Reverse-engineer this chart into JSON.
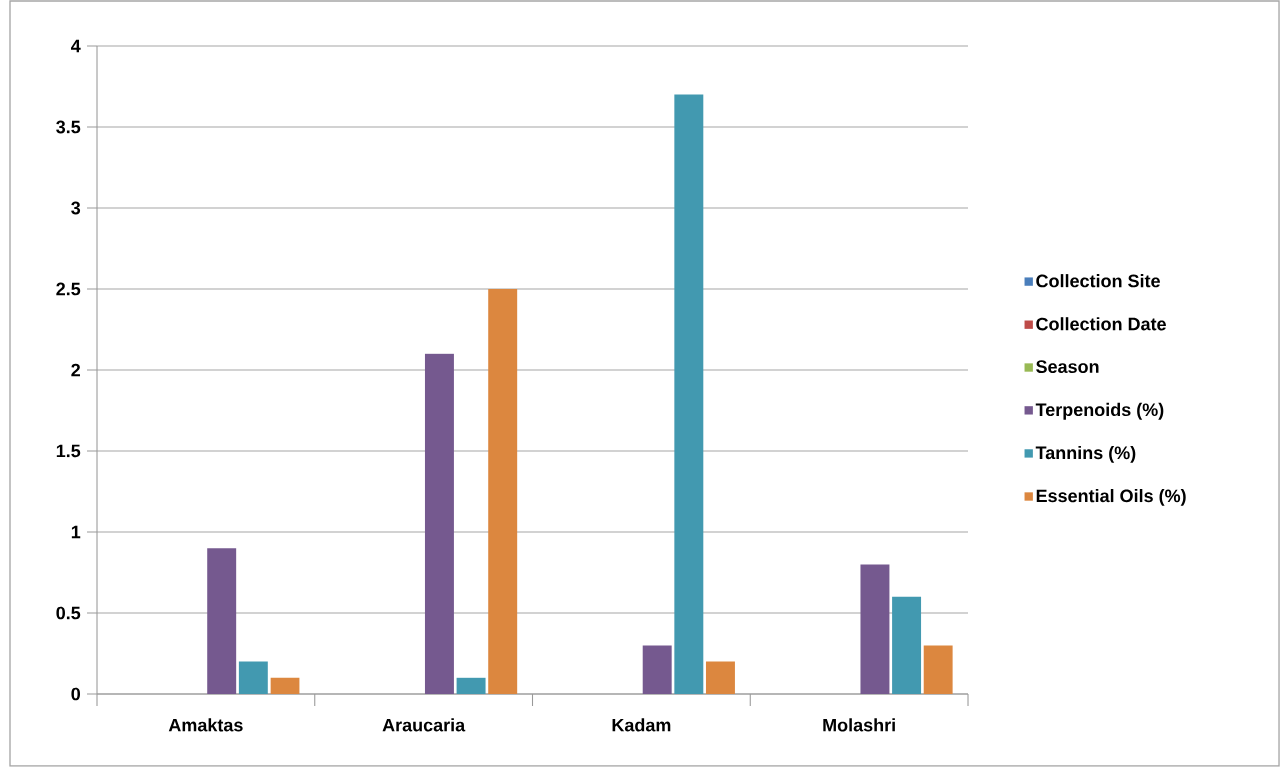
{
  "chart_data": {
    "type": "bar",
    "categories": [
      "Amaktas",
      "Araucaria",
      "Kadam",
      "Molashri"
    ],
    "series": [
      {
        "name": "Collection Site",
        "color": "#4a7ebb",
        "values": [
          0,
          0,
          0,
          0
        ]
      },
      {
        "name": "Collection Date",
        "color": "#be4b48",
        "values": [
          0,
          0,
          0,
          0
        ]
      },
      {
        "name": "Season",
        "color": "#98b954",
        "values": [
          0,
          0,
          0,
          0
        ]
      },
      {
        "name": "Terpenoids (%)",
        "color": "#75598f",
        "values": [
          0.9,
          2.1,
          0.3,
          0.8
        ]
      },
      {
        "name": "Tannins (%)",
        "color": "#4299b0",
        "values": [
          0.2,
          0.1,
          3.7,
          0.6
        ]
      },
      {
        "name": "Essential Oils (%)",
        "color": "#dc873f",
        "values": [
          0.1,
          2.5,
          0.2,
          0.3
        ]
      }
    ],
    "ylim": [
      0,
      4
    ],
    "yticks": [
      0,
      0.5,
      1,
      1.5,
      2,
      2.5,
      3,
      3.5,
      4
    ],
    "grid": "y",
    "legend": "right"
  }
}
